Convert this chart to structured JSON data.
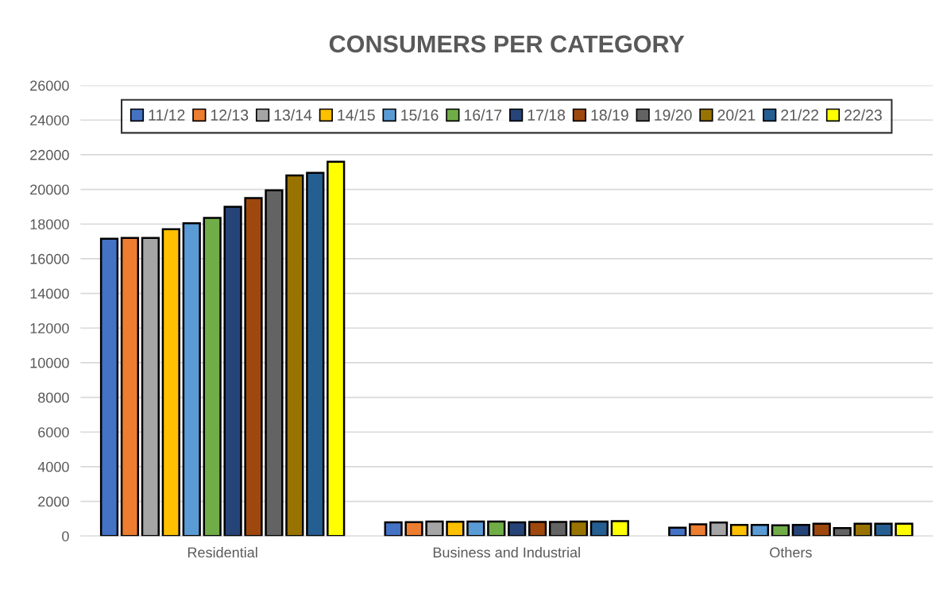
{
  "chart_data": {
    "type": "bar",
    "title": "CONSUMERS PER CATEGORY",
    "categories": [
      "Residential",
      "Business and Industrial",
      "Others"
    ],
    "series": [
      {
        "name": "11/12",
        "color": "#4472c4",
        "values": [
          17150,
          790,
          480
        ]
      },
      {
        "name": "12/13",
        "color": "#ed7d31",
        "values": [
          17200,
          800,
          670
        ]
      },
      {
        "name": "13/14",
        "color": "#a5a5a5",
        "values": [
          17200,
          830,
          780
        ]
      },
      {
        "name": "14/15",
        "color": "#ffc000",
        "values": [
          17700,
          820,
          640
        ]
      },
      {
        "name": "15/16",
        "color": "#5b9bd5",
        "values": [
          18050,
          830,
          640
        ]
      },
      {
        "name": "16/17",
        "color": "#70ad47",
        "values": [
          18350,
          830,
          620
        ]
      },
      {
        "name": "17/18",
        "color": "#264478",
        "values": [
          19000,
          790,
          640
        ]
      },
      {
        "name": "18/19",
        "color": "#9e480e",
        "values": [
          19500,
          810,
          710
        ]
      },
      {
        "name": "19/20",
        "color": "#636363",
        "values": [
          19950,
          810,
          460
        ]
      },
      {
        "name": "20/21",
        "color": "#997300",
        "values": [
          20800,
          830,
          710
        ]
      },
      {
        "name": "21/22",
        "color": "#255e91",
        "values": [
          20950,
          840,
          710
        ]
      },
      {
        "name": "22/23",
        "color": "#ffff00",
        "values": [
          21600,
          860,
          710
        ]
      }
    ],
    "ylim": [
      0,
      26000
    ],
    "yticks": [
      0,
      2000,
      4000,
      6000,
      8000,
      10000,
      12000,
      14000,
      16000,
      18000,
      20000,
      22000,
      24000,
      26000
    ],
    "grid": "y",
    "legend": "top"
  }
}
